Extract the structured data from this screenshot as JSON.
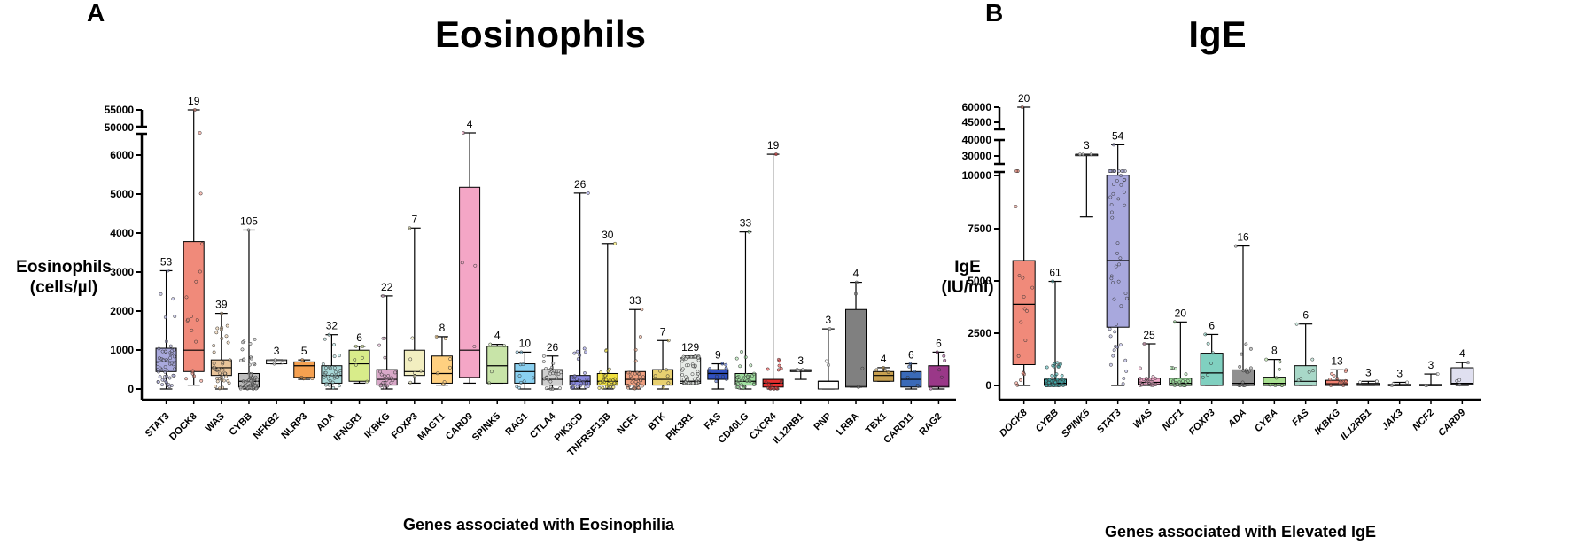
{
  "chart_data": [
    {
      "type": "box",
      "panel": "A",
      "title": "Eosinophils",
      "ylabel": [
        "Eosinophils",
        "(cells/µl)"
      ],
      "xlabel": "Genes associated with Eosinophilia",
      "ylim": [
        0,
        55000
      ],
      "y_ticks": [
        0,
        1000,
        2000,
        3000,
        4000,
        5000,
        6000,
        50000,
        55000
      ],
      "categories": [
        {
          "gene": "STAT3",
          "n": "53",
          "color": "#a9a9dd",
          "q1": 450,
          "median": 700,
          "q3": 1050,
          "min": 0,
          "max": 3050
        },
        {
          "gene": "DOCK8",
          "n": "19",
          "color": "#f08a7a",
          "q1": 450,
          "median": 1000,
          "q3": 3800,
          "min": 100,
          "max": 55000
        },
        {
          "gene": "WAS",
          "n": "39",
          "color": "#e8c49a",
          "q1": 350,
          "median": 550,
          "q3": 750,
          "min": 0,
          "max": 1950
        },
        {
          "gene": "CYBB",
          "n": "105",
          "color": "#bdbdbd",
          "q1": 50,
          "median": 200,
          "q3": 400,
          "min": 0,
          "max": 4100
        },
        {
          "gene": "NFKB2",
          "n": "3",
          "color": "#ffffff",
          "q1": 650,
          "median": 700,
          "q3": 750,
          "min": 650,
          "max": 750
        },
        {
          "gene": "NLRP3",
          "n": "5",
          "color": "#f5a050",
          "q1": 300,
          "median": 600,
          "q3": 700,
          "min": 250,
          "max": 750
        },
        {
          "gene": "ADA",
          "n": "32",
          "color": "#a8d8d8",
          "q1": 150,
          "median": 350,
          "q3": 600,
          "min": 0,
          "max": 1400
        },
        {
          "gene": "IFNGR1",
          "n": "6",
          "color": "#d8ec8a",
          "q1": 200,
          "median": 650,
          "q3": 1000,
          "min": 150,
          "max": 1100
        },
        {
          "gene": "IKBKG",
          "n": "22",
          "color": "#d8a8c8",
          "q1": 100,
          "median": 250,
          "q3": 500,
          "min": 0,
          "max": 2400
        },
        {
          "gene": "FOXP3",
          "n": "7",
          "color": "#f2eec0",
          "q1": 350,
          "median": 450,
          "q3": 1000,
          "min": 150,
          "max": 4150
        },
        {
          "gene": "MAGT1",
          "n": "8",
          "color": "#ffd080",
          "q1": 150,
          "median": 400,
          "q3": 850,
          "min": 100,
          "max": 1350
        },
        {
          "gene": "CARD9",
          "n": "4",
          "color": "#f4a6c6",
          "q1": 300,
          "median": 1000,
          "q3": 5200,
          "min": 150,
          "max": 6600
        },
        {
          "gene": "SPINK5",
          "n": "4",
          "color": "#c8e4a8",
          "q1": 150,
          "median": 600,
          "q3": 1100,
          "min": 150,
          "max": 1150
        },
        {
          "gene": "RAG1",
          "n": "10",
          "color": "#8ad0f0",
          "q1": 150,
          "median": 450,
          "q3": 650,
          "min": 0,
          "max": 950
        },
        {
          "gene": "CTLA4",
          "n": "26",
          "color": "#cfcfcf",
          "q1": 100,
          "median": 250,
          "q3": 500,
          "min": 0,
          "max": 850
        },
        {
          "gene": "PIK3CD",
          "n": "26",
          "color": "#8888dd",
          "q1": 100,
          "median": 200,
          "q3": 350,
          "min": 0,
          "max": 5050
        },
        {
          "gene": "TNFRSF13B",
          "n": "30",
          "color": "#f0e040",
          "q1": 100,
          "median": 200,
          "q3": 400,
          "min": 0,
          "max": 3750
        },
        {
          "gene": "NCF1",
          "n": "33",
          "color": "#f0a080",
          "q1": 100,
          "median": 250,
          "q3": 450,
          "min": 0,
          "max": 2050
        },
        {
          "gene": "BTK",
          "n": "7",
          "color": "#e8d070",
          "q1": 100,
          "median": 250,
          "q3": 500,
          "min": 0,
          "max": 1250
        },
        {
          "gene": "PIK3R1",
          "n": "129",
          "color": "#e8ece8",
          "q1": 150,
          "median": 200,
          "q3": 800,
          "min": 150,
          "max": 850
        },
        {
          "gene": "FAS",
          "n": "9",
          "color": "#3050c0",
          "q1": 250,
          "median": 400,
          "q3": 500,
          "min": 0,
          "max": 650
        },
        {
          "gene": "CD40LG",
          "n": "33",
          "color": "#a0e0a0",
          "q1": 100,
          "median": 200,
          "q3": 400,
          "min": 0,
          "max": 4050
        },
        {
          "gene": "CXCR4",
          "n": "19",
          "color": "#e83030",
          "q1": 50,
          "median": 150,
          "q3": 250,
          "min": 0,
          "max": 6050
        },
        {
          "gene": "IL12RB1",
          "n": "3",
          "color": "#ffffff",
          "q1": 450,
          "median": 480,
          "q3": 500,
          "min": 250,
          "max": 500
        },
        {
          "gene": "PNP",
          "n": "3",
          "color": "#ffffff",
          "q1": 0,
          "median": 200,
          "q3": 200,
          "min": 0,
          "max": 1550
        },
        {
          "gene": "LRBA",
          "n": "4",
          "color": "#808080",
          "q1": 50,
          "median": 100,
          "q3": 2050,
          "min": 50,
          "max": 2750
        },
        {
          "gene": "TBX1",
          "n": "4",
          "color": "#c8a050",
          "q1": 200,
          "median": 350,
          "q3": 450,
          "min": 200,
          "max": 550
        },
        {
          "gene": "CARD11",
          "n": "6",
          "color": "#3a6ab8",
          "q1": 50,
          "median": 250,
          "q3": 450,
          "min": 0,
          "max": 650
        },
        {
          "gene": "RAG2",
          "n": "6",
          "color": "#9a3888",
          "q1": 50,
          "median": 100,
          "q3": 600,
          "min": 0,
          "max": 950
        }
      ]
    },
    {
      "type": "box",
      "panel": "B",
      "title": "IgE",
      "ylabel": [
        "IgE",
        "(IU/ml)"
      ],
      "xlabel": "Genes associated with Elevated IgE",
      "ylim": [
        0,
        60000
      ],
      "y_ticks": [
        0,
        2500,
        5000,
        7500,
        10000,
        30000,
        40000,
        45000,
        60000
      ],
      "categories": [
        {
          "gene": "DOCK8",
          "n": "20",
          "color": "#f08a7a",
          "q1": 1000,
          "median": 3900,
          "q3": 6000,
          "min": 0,
          "max": 60000
        },
        {
          "gene": "CYBB",
          "n": "61",
          "color": "#40b0b0",
          "q1": 0,
          "median": 100,
          "q3": 300,
          "min": 0,
          "max": 5000
        },
        {
          "gene": "SPINK5",
          "n": "3",
          "color": "#ffffff",
          "q1": 31000,
          "median": 31000,
          "q3": 31000,
          "min": 8100,
          "max": 31000
        },
        {
          "gene": "STAT3",
          "n": "54",
          "color": "#a8a8dd",
          "q1": 2800,
          "median": 6000,
          "q3": 10100,
          "min": 0,
          "max": 37000
        },
        {
          "gene": "WAS",
          "n": "25",
          "color": "#f0a8c8",
          "q1": 50,
          "median": 150,
          "q3": 350,
          "min": 0,
          "max": 2000
        },
        {
          "gene": "NCF1",
          "n": "20",
          "color": "#a0e0a0",
          "q1": 0,
          "median": 100,
          "q3": 350,
          "min": 0,
          "max": 3050
        },
        {
          "gene": "FOXP3",
          "n": "6",
          "color": "#80d0c0",
          "q1": 0,
          "median": 600,
          "q3": 1550,
          "min": 0,
          "max": 2450
        },
        {
          "gene": "ADA",
          "n": "16",
          "color": "#909090",
          "q1": 0,
          "median": 100,
          "q3": 750,
          "min": 0,
          "max": 6700
        },
        {
          "gene": "CYBA",
          "n": "8",
          "color": "#a8e090",
          "q1": 0,
          "median": 100,
          "q3": 400,
          "min": 0,
          "max": 1250
        },
        {
          "gene": "FAS",
          "n": "6",
          "color": "#a8d8c8",
          "q1": 0,
          "median": 200,
          "q3": 950,
          "min": 0,
          "max": 2950
        },
        {
          "gene": "IKBKG",
          "n": "13",
          "color": "#f08070",
          "q1": 0,
          "median": 80,
          "q3": 250,
          "min": 0,
          "max": 750
        },
        {
          "gene": "IL12RB1",
          "n": "3",
          "color": "#ffffff",
          "q1": 0,
          "median": 50,
          "q3": 100,
          "min": 0,
          "max": 200
        },
        {
          "gene": "JAK3",
          "n": "3",
          "color": "#ffffff",
          "q1": 0,
          "median": 20,
          "q3": 50,
          "min": 0,
          "max": 150
        },
        {
          "gene": "NCF2",
          "n": "3",
          "color": "#ffffff",
          "q1": 0,
          "median": 20,
          "q3": 50,
          "min": 0,
          "max": 550
        },
        {
          "gene": "CARD9",
          "n": "4",
          "color": "#e0e0f0",
          "q1": 50,
          "median": 100,
          "q3": 850,
          "min": 0,
          "max": 1100
        }
      ]
    }
  ]
}
